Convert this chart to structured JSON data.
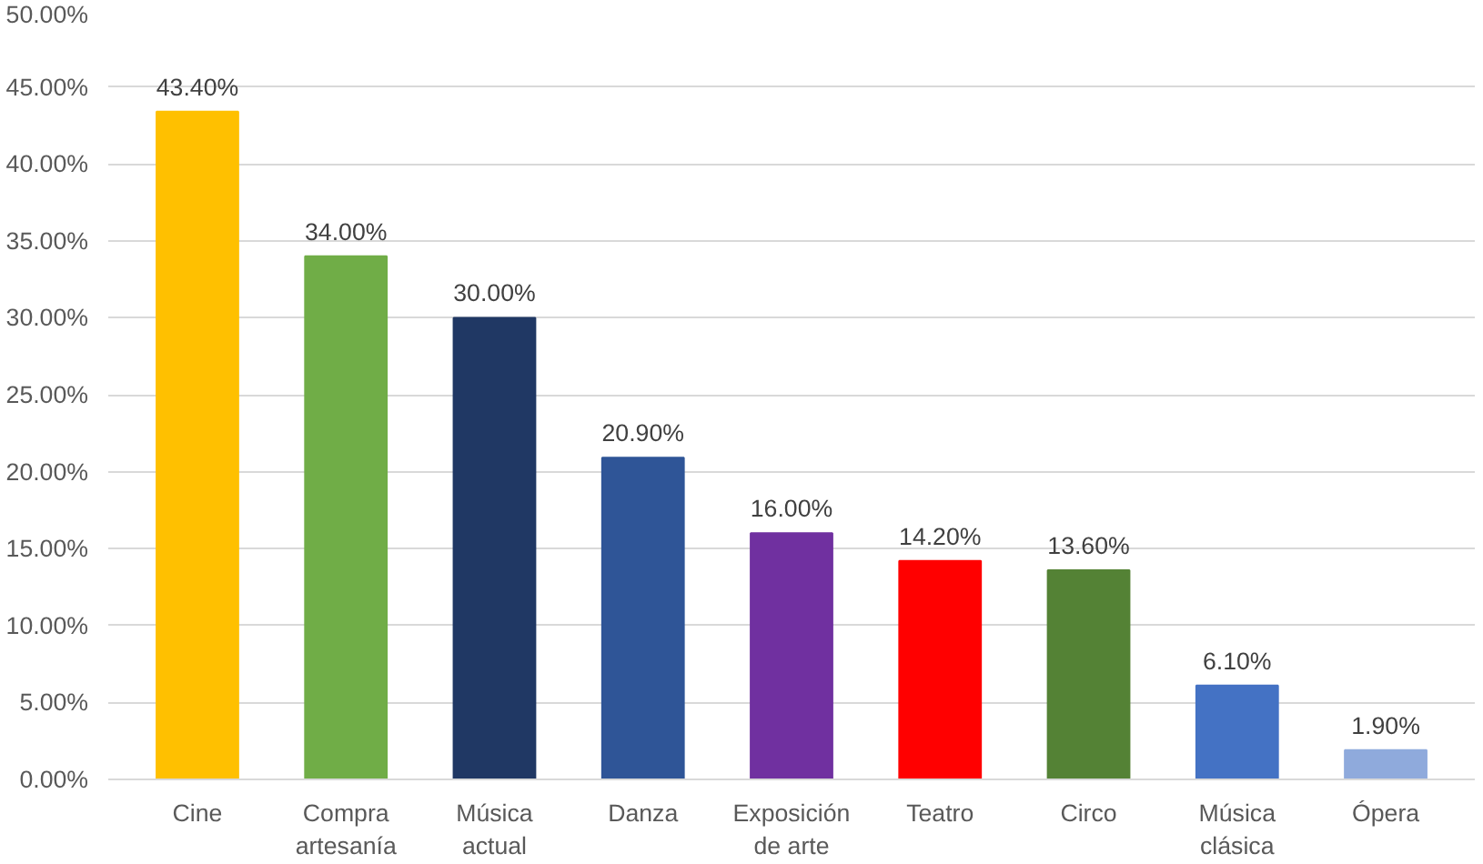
{
  "chart_data": {
    "type": "bar",
    "categories": [
      "Cine",
      "Compra\nartesanía",
      "Música\nactual",
      "Danza",
      "Exposición\nde arte",
      "Teatro",
      "Circo",
      "Música\nclásica",
      "Ópera"
    ],
    "values": [
      43.4,
      34.0,
      30.0,
      20.9,
      16.0,
      14.2,
      13.6,
      6.1,
      1.9
    ],
    "colors": [
      "#ffc000",
      "#70ad47",
      "#203864",
      "#2f5597",
      "#7030a0",
      "#ff0000",
      "#548235",
      "#4472c4",
      "#8faadc"
    ],
    "value_labels": [
      "43.40%",
      "34.00%",
      "30.00%",
      "20.90%",
      "16.00%",
      "14.20%",
      "13.60%",
      "6.10%",
      "1.90%"
    ],
    "ylim": [
      0,
      50
    ],
    "yticks": [
      {
        "value": 0,
        "label": "0.00%"
      },
      {
        "value": 5,
        "label": "5.00%"
      },
      {
        "value": 10,
        "label": "10.00%"
      },
      {
        "value": 15,
        "label": "15.00%"
      },
      {
        "value": 20,
        "label": "20.00%"
      },
      {
        "value": 25,
        "label": "25.00%"
      },
      {
        "value": 30,
        "label": "30.00%"
      },
      {
        "value": 35,
        "label": "35.00%"
      },
      {
        "value": 40,
        "label": "40.00%"
      },
      {
        "value": 45,
        "label": "45.00%"
      },
      {
        "value": 50,
        "label": "50.00%"
      }
    ],
    "grid": "y"
  }
}
